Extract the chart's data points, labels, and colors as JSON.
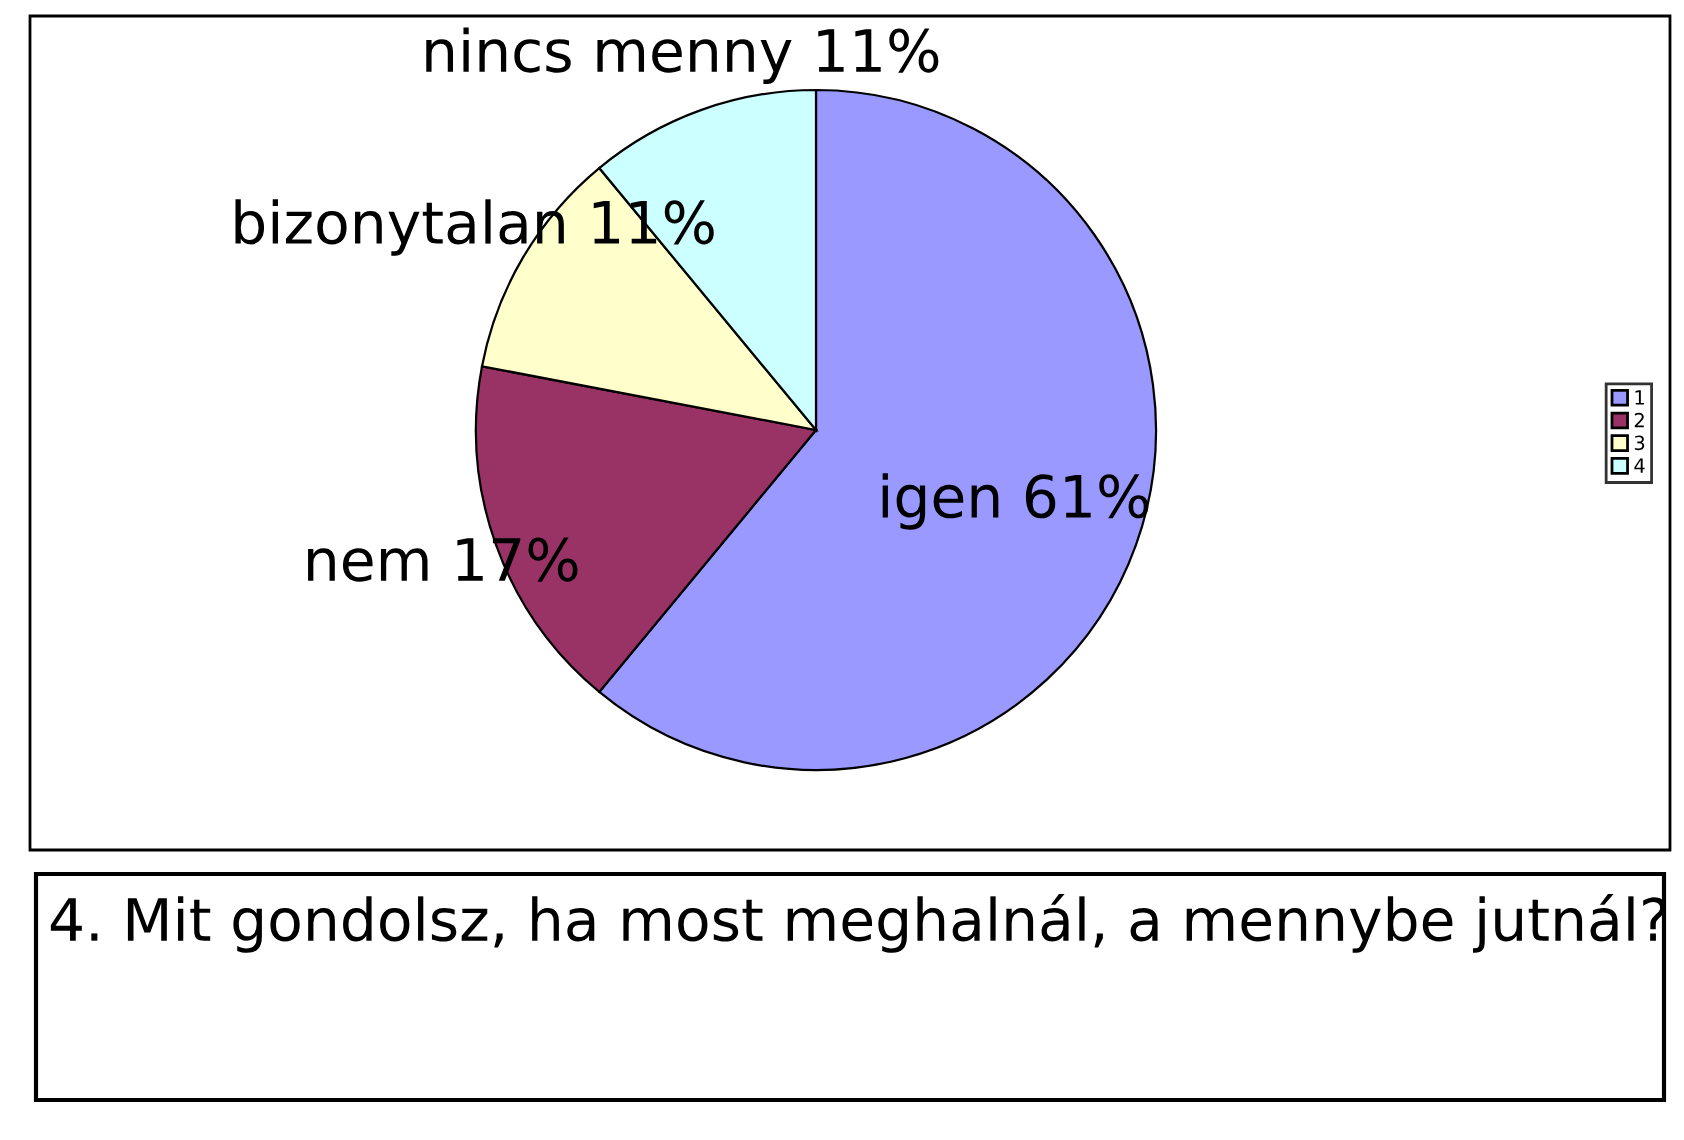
{
  "chart_data": {
    "type": "pie",
    "title": "4. Mit gondolsz, ha most meghalnál, a mennybe jutnál?",
    "categories": [
      "1",
      "2",
      "3",
      "4"
    ],
    "values": [
      61,
      17,
      11,
      11
    ],
    "colors": [
      "#9999ff",
      "#993366",
      "#ffffcc",
      "#ccffff"
    ],
    "value_labels": [
      "igen 61%",
      "nem 17%",
      "bizonytalan 11%",
      "nincs menny 11%"
    ],
    "legend": "right"
  }
}
